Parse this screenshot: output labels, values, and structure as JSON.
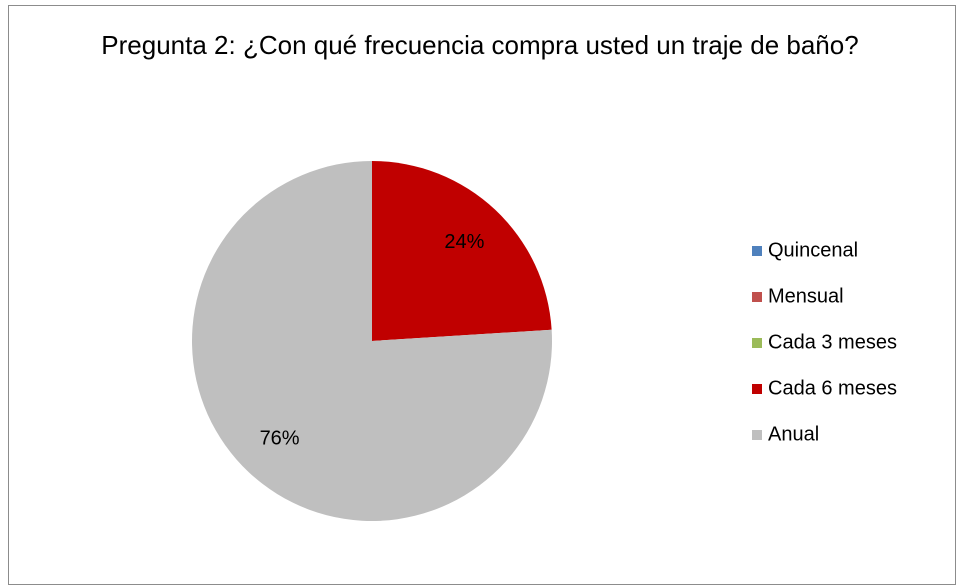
{
  "chart_data": {
    "type": "pie",
    "title": "Pregunta 2: ¿Con qué frecuencia compra usted un traje de baño?",
    "categories": [
      "Quincenal",
      "Mensual",
      "Cada 3 meses",
      "Cada 6 meses",
      "Anual"
    ],
    "values": [
      0,
      0,
      0,
      24,
      76
    ],
    "value_labels": [
      null,
      null,
      null,
      "24%",
      "76%"
    ],
    "colors": [
      "#4f81bd",
      "#c0504d",
      "#9bbb59",
      "#c00000",
      "#bfbfbf"
    ],
    "legend": "right"
  }
}
